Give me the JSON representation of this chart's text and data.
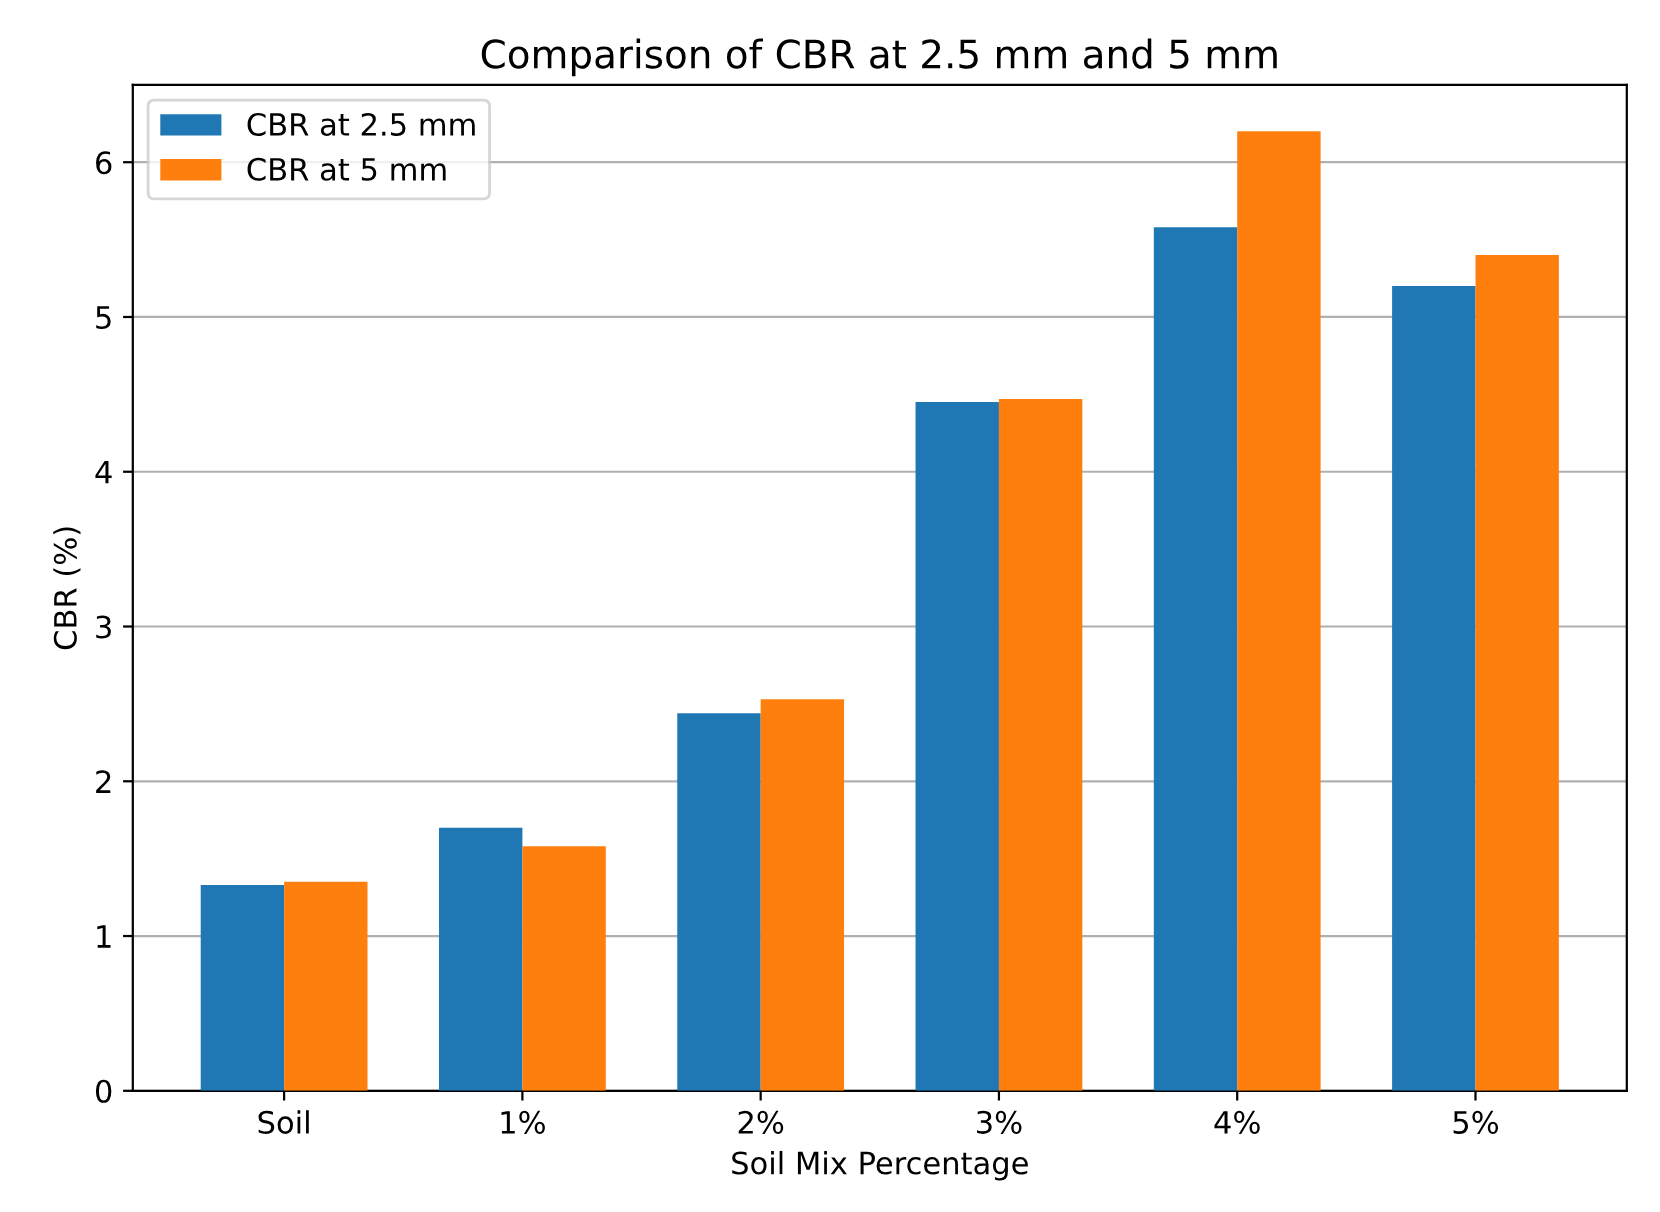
{
  "chart_data": {
    "type": "bar",
    "title": "Comparison of CBR at 2.5 mm and 5 mm",
    "xlabel": "Soil Mix Percentage",
    "ylabel": "CBR (%)",
    "categories": [
      "Soil",
      "1%",
      "2%",
      "3%",
      "4%",
      "5%"
    ],
    "series": [
      {
        "name": "CBR at 2.5 mm",
        "color": "#1f77b4",
        "values": [
          1.33,
          1.7,
          2.44,
          4.45,
          5.58,
          5.2
        ]
      },
      {
        "name": "CBR at 5 mm",
        "color": "#ff7f0e",
        "values": [
          1.35,
          1.58,
          2.53,
          4.47,
          6.2,
          5.4
        ]
      }
    ],
    "ylim": [
      0,
      6.5
    ],
    "yticks": [
      0,
      1,
      2,
      3,
      4,
      5,
      6
    ],
    "grid": "y",
    "legend": "top left"
  }
}
